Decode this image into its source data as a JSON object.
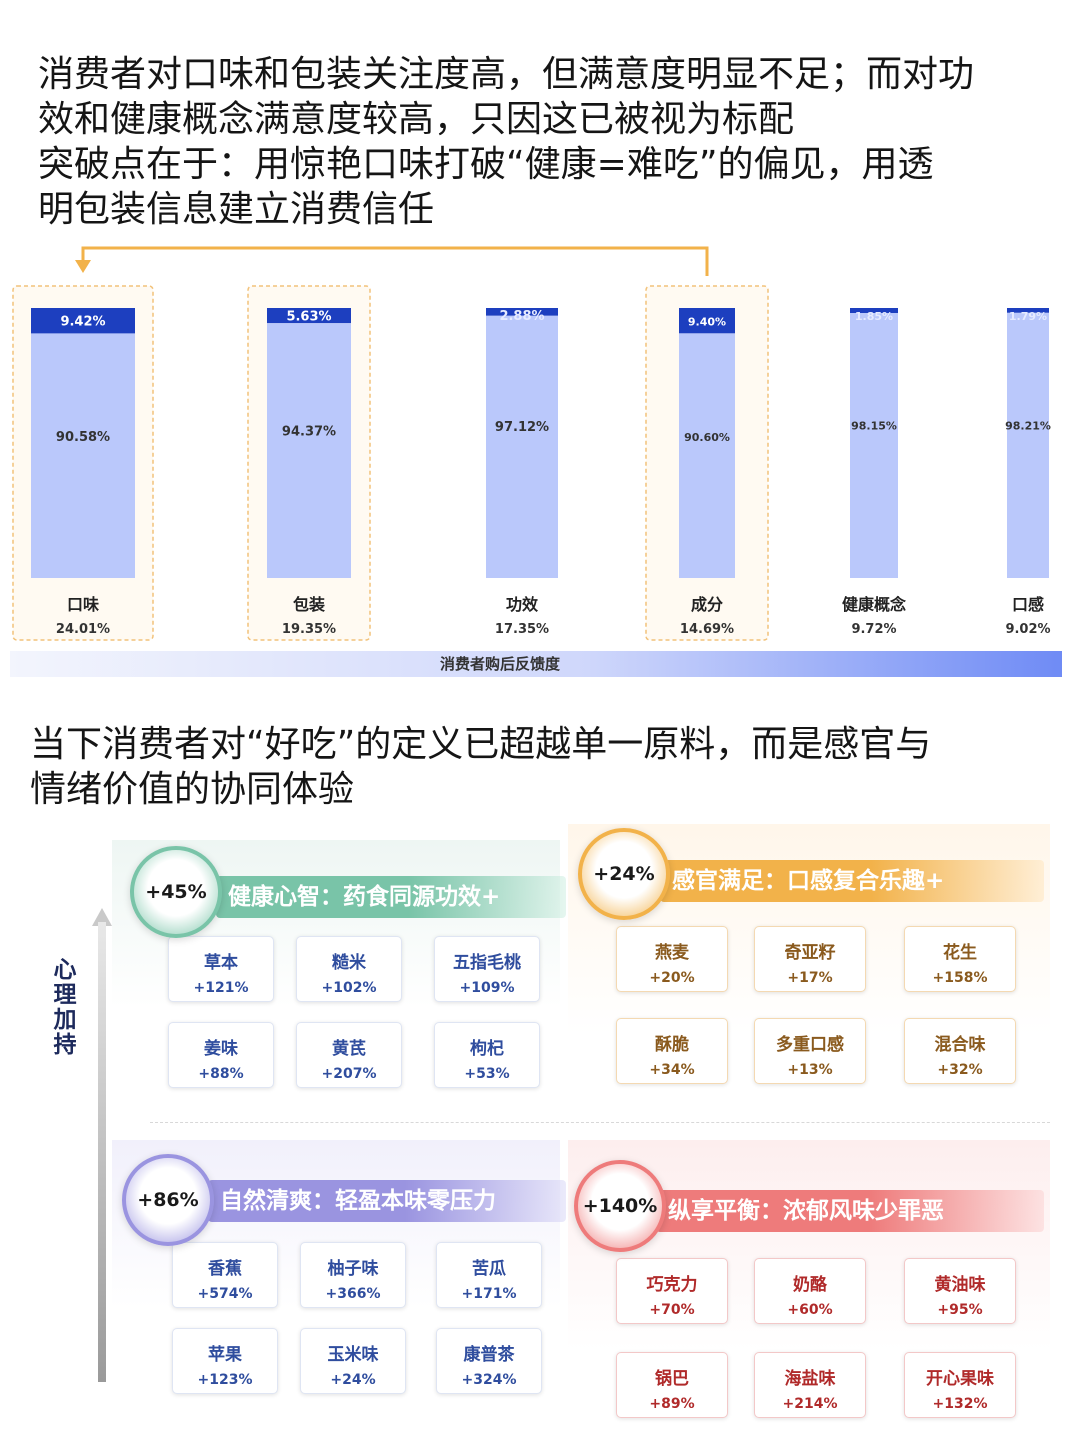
{
  "headline1": {
    "line1": "消费者对口味和包装关注度高，但满意度明显不足；而对功",
    "line2": "效和健康概念满意度较高，只因这已被视为标配",
    "line3": "突破点在于：用惊艳口味打破“健康=难吃”的偏见，用透",
    "line4": "明包装信息建立消费信任"
  },
  "chart_data": {
    "type": "bar",
    "stacked": true,
    "xlabel": "消费者购后反馈度",
    "categories": [
      "口味",
      "包装",
      "功效",
      "成分",
      "健康概念",
      "口感"
    ],
    "category_share": [
      "24.01%",
      "19.35%",
      "17.35%",
      "14.69%",
      "9.72%",
      "9.02%"
    ],
    "series": [
      {
        "values": [
          9.42,
          5.63,
          2.88,
          9.4,
          1.85,
          1.79
        ],
        "labels": [
          "9.42%",
          "5.63%",
          "2.88%",
          "9.40%",
          "1.85%",
          "1.79%"
        ],
        "color": "#1d3fbf"
      },
      {
        "values": [
          90.58,
          94.37,
          97.12,
          90.6,
          98.15,
          98.21
        ],
        "labels": [
          "90.58%",
          "94.37%",
          "97.12%",
          "90.60%",
          "98.15%",
          "98.21%"
        ],
        "color": "#bac8fb"
      }
    ],
    "highlighted": [
      "口味",
      "包装",
      "成分"
    ],
    "ylim": [
      0,
      100
    ]
  },
  "headline2": {
    "line1": "当下消费者对“好吃”的定义已超越单一原料，而是感官与",
    "line2": "情绪价值的协同体验"
  },
  "axis_label": "心理加持",
  "groups": {
    "health": {
      "pct": "+45%",
      "title": "健康心智：药食同源功效+",
      "color": "#79c4a8",
      "items": [
        {
          "name": "草本",
          "value": "+121%"
        },
        {
          "name": "糙米",
          "value": "+102%"
        },
        {
          "name": "五指毛桃",
          "value": "+109%"
        },
        {
          "name": "姜味",
          "value": "+88%"
        },
        {
          "name": "黄芪",
          "value": "+207%"
        },
        {
          "name": "枸杞",
          "value": "+53%"
        }
      ]
    },
    "sensory": {
      "pct": "+24%",
      "title": "感官满足：口感复合乐趣+",
      "color": "#f2b24a",
      "items": [
        {
          "name": "燕麦",
          "value": "+20%"
        },
        {
          "name": "奇亚籽",
          "value": "+17%"
        },
        {
          "name": "花生",
          "value": "+158%"
        },
        {
          "name": "酥脆",
          "value": "+34%"
        },
        {
          "name": "多重口感",
          "value": "+13%"
        },
        {
          "name": "混合味",
          "value": "+32%"
        }
      ]
    },
    "natural": {
      "pct": "+86%",
      "title": "自然清爽：轻盈本味零压力",
      "color": "#9a94e0",
      "items": [
        {
          "name": "香蕉",
          "value": "+574%"
        },
        {
          "name": "柚子味",
          "value": "+366%"
        },
        {
          "name": "苦瓜",
          "value": "+171%"
        },
        {
          "name": "苹果",
          "value": "+123%"
        },
        {
          "name": "玉米味",
          "value": "+24%"
        },
        {
          "name": "康普茶",
          "value": "+324%"
        }
      ]
    },
    "indulge": {
      "pct": "+140%",
      "title": "纵享平衡：浓郁风味少罪恶",
      "color": "#ee7b7b",
      "items": [
        {
          "name": "巧克力",
          "value": "+70%"
        },
        {
          "name": "奶酪",
          "value": "+60%"
        },
        {
          "name": "黄油味",
          "value": "+95%"
        },
        {
          "name": "锅巴",
          "value": "+89%"
        },
        {
          "name": "海盐味",
          "value": "+214%"
        },
        {
          "name": "开心果味",
          "value": "+132%"
        }
      ]
    }
  }
}
